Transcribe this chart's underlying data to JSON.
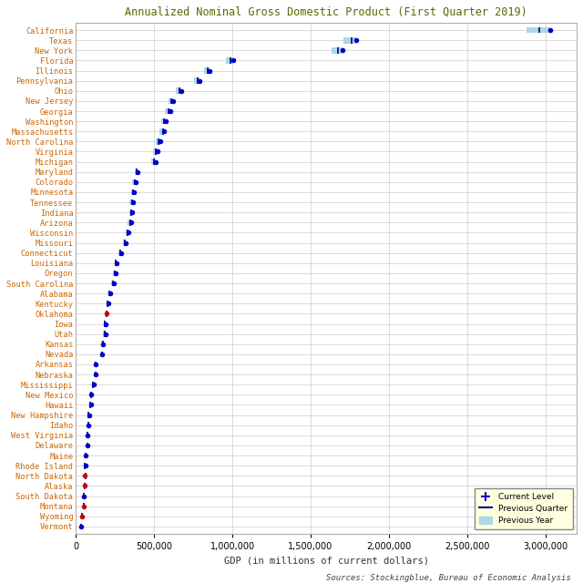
{
  "title": "Annualized Nominal Gross Domestic Product (First Quarter 2019)",
  "xlabel": "GDP (in millions of current dollars)",
  "source": "Sources: Stockingblue, Bureau of Economic Analysis",
  "states": [
    "California",
    "Texas",
    "New York",
    "Florida",
    "Illinois",
    "Pennsylvania",
    "Ohio",
    "New Jersey",
    "Georgia",
    "Washington",
    "Massachusetts",
    "North Carolina",
    "Virginia",
    "Michigan",
    "Maryland",
    "Colorado",
    "Minnesota",
    "Tennessee",
    "Indiana",
    "Arizona",
    "Wisconsin",
    "Missouri",
    "Connecticut",
    "Louisiana",
    "Oregon",
    "South Carolina",
    "Alabama",
    "Kentucky",
    "Oklahoma",
    "Iowa",
    "Utah",
    "Kansas",
    "Nevada",
    "Arkansas",
    "Nebraska",
    "Mississippi",
    "New Mexico",
    "Hawaii",
    "New Hampshire",
    "Idaho",
    "West Virginia",
    "Delaware",
    "Maine",
    "Rhode Island",
    "North Dakota",
    "Alaska",
    "South Dakota",
    "Montana",
    "Wyoming",
    "Vermont"
  ],
  "current": [
    3032000,
    1792000,
    1705000,
    1007000,
    853000,
    788000,
    671000,
    620000,
    602000,
    576000,
    566000,
    539000,
    521000,
    510000,
    397000,
    384000,
    374000,
    366000,
    360000,
    354000,
    337000,
    319000,
    291000,
    262000,
    254000,
    241000,
    222000,
    210000,
    195000,
    192000,
    188000,
    176000,
    170000,
    128000,
    128000,
    115000,
    100000,
    96000,
    85000,
    82000,
    77000,
    75000,
    64000,
    61000,
    58000,
    55000,
    52000,
    51000,
    39000,
    34000
  ],
  "prev_quarter": [
    2960000,
    1760000,
    1675000,
    988000,
    842000,
    778000,
    662000,
    611000,
    591000,
    566000,
    556000,
    529000,
    512000,
    501000,
    390000,
    375000,
    366000,
    358000,
    353000,
    346000,
    330000,
    312000,
    286000,
    256000,
    248000,
    235000,
    216000,
    205000,
    198000,
    187000,
    183000,
    171000,
    165000,
    124000,
    124000,
    112000,
    97000,
    93000,
    83000,
    79000,
    75000,
    72000,
    62000,
    59000,
    62000,
    57000,
    50000,
    53000,
    41000,
    33000
  ],
  "prev_year": [
    2880000,
    1710000,
    1636000,
    961000,
    822000,
    757000,
    641000,
    591000,
    567000,
    548000,
    534000,
    508000,
    496000,
    481000,
    377000,
    358000,
    352000,
    344000,
    340000,
    330000,
    319000,
    299000,
    274000,
    247000,
    237000,
    224000,
    207000,
    197000,
    192000,
    179000,
    172000,
    162000,
    158000,
    117000,
    117000,
    106000,
    92000,
    88000,
    78000,
    74000,
    70000,
    68000,
    59000,
    55000,
    56000,
    55000,
    47000,
    49000,
    39000,
    32000
  ],
  "dot_color_default": "#0000CC",
  "dot_color_red": "#CC0000",
  "red_states": [
    "Oklahoma",
    "North Dakota",
    "Alaska",
    "Wyoming",
    "Montana"
  ],
  "prev_quarter_color": "#00008B",
  "prev_year_color": "#ADD8E6",
  "background_color": "#FFFFFF",
  "grid_color": "#CCCCCC",
  "title_color": "#556B00",
  "label_color_orange": "#CC6600",
  "label_color_default": "#CC6600",
  "xlim": [
    0,
    3200000
  ],
  "xtick_vals": [
    0,
    500000,
    1000000,
    1500000,
    2000000,
    2500000,
    3000000
  ]
}
